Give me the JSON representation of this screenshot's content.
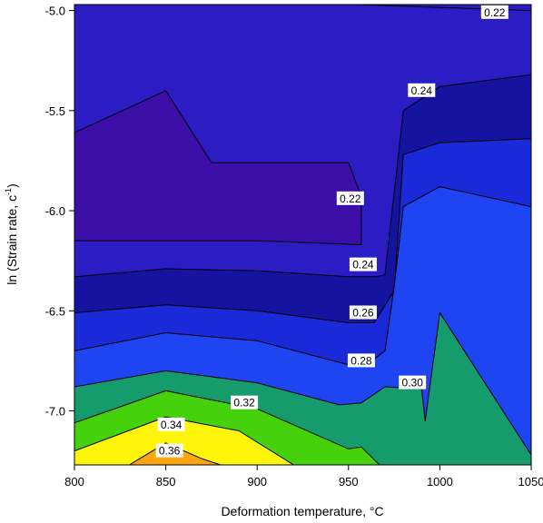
{
  "chart_data": {
    "type": "contour",
    "xlabel": "Deformation temperature, °C",
    "ylabel": "ln (Strain rate, c",
    "ylabel_sup": "-1",
    "ylabel_tail": ")",
    "xlim": [
      800,
      1050
    ],
    "ylim": [
      -7.27,
      -4.97
    ],
    "x_ticks": [
      {
        "value": 800,
        "label": "800"
      },
      {
        "value": 850,
        "label": "850"
      },
      {
        "value": 900,
        "label": "900"
      },
      {
        "value": 950,
        "label": "950"
      },
      {
        "value": 1000,
        "label": "1000"
      },
      {
        "value": 1050,
        "label": "1050"
      }
    ],
    "y_ticks": [
      {
        "value": -5.0,
        "label": "-5.0"
      },
      {
        "value": -5.5,
        "label": "-5.5"
      },
      {
        "value": -6.0,
        "label": "-6.0"
      },
      {
        "value": -6.5,
        "label": "-6.5"
      },
      {
        "value": -7.0,
        "label": "-7.0"
      }
    ],
    "background_color": "#2c1cc4",
    "contours": [
      {
        "level": 0.22,
        "fill": "#3c0ea8",
        "points": [
          [
            800,
            -5.61
          ],
          [
            850,
            -5.4
          ],
          [
            875,
            -5.76
          ],
          [
            950,
            -5.76
          ],
          [
            957,
            -5.93
          ],
          [
            957,
            -6.17
          ],
          [
            900,
            -6.15
          ],
          [
            800,
            -6.15
          ]
        ]
      },
      {
        "level": 0.24,
        "fill": "#1414a0",
        "points": [
          [
            800,
            -6.33
          ],
          [
            850,
            -6.29
          ],
          [
            900,
            -6.3
          ],
          [
            950,
            -6.33
          ],
          [
            965,
            -6.33
          ],
          [
            970,
            -6.32
          ],
          [
            980,
            -5.5
          ],
          [
            1000,
            -5.38
          ],
          [
            1050,
            -5.32
          ],
          [
            1050,
            -7.27
          ],
          [
            800,
            -7.27
          ]
        ]
      },
      {
        "level": 0.26,
        "fill": "#1a2ad8",
        "points": [
          [
            800,
            -6.51
          ],
          [
            850,
            -6.47
          ],
          [
            900,
            -6.5
          ],
          [
            950,
            -6.56
          ],
          [
            964,
            -6.56
          ],
          [
            975,
            -6.4
          ],
          [
            980,
            -5.72
          ],
          [
            1000,
            -5.66
          ],
          [
            1050,
            -5.64
          ],
          [
            1050,
            -7.27
          ],
          [
            800,
            -7.27
          ]
        ]
      },
      {
        "level": 0.28,
        "fill": "#1f44f2",
        "points": [
          [
            800,
            -6.7
          ],
          [
            850,
            -6.61
          ],
          [
            900,
            -6.65
          ],
          [
            950,
            -6.77
          ],
          [
            960,
            -6.77
          ],
          [
            970,
            -6.7
          ],
          [
            975,
            -6.38
          ],
          [
            980,
            -5.98
          ],
          [
            1000,
            -5.88
          ],
          [
            1050,
            -5.98
          ],
          [
            1050,
            -7.27
          ],
          [
            800,
            -7.27
          ]
        ]
      },
      {
        "level": 0.3,
        "fill": "#159b6c",
        "points": [
          [
            800,
            -6.88
          ],
          [
            850,
            -6.8
          ],
          [
            900,
            -6.86
          ],
          [
            945,
            -6.97
          ],
          [
            957,
            -6.96
          ],
          [
            970,
            -6.88
          ],
          [
            990,
            -6.89
          ],
          [
            992,
            -7.05
          ],
          [
            1000,
            -6.51
          ],
          [
            1050,
            -7.22
          ],
          [
            1050,
            -7.27
          ],
          [
            800,
            -7.27
          ]
        ]
      },
      {
        "level": 0.32,
        "fill": "#45d20c",
        "points": [
          [
            800,
            -7.06
          ],
          [
            850,
            -6.9
          ],
          [
            900,
            -6.99
          ],
          [
            950,
            -7.19
          ],
          [
            957,
            -7.18
          ],
          [
            967,
            -7.27
          ],
          [
            800,
            -7.27
          ]
        ]
      },
      {
        "level": 0.34,
        "fill": "#fef50a",
        "points": [
          [
            800,
            -7.2
          ],
          [
            850,
            -7.03
          ],
          [
            890,
            -7.1
          ],
          [
            920,
            -7.27
          ],
          [
            800,
            -7.27
          ]
        ]
      },
      {
        "level": 0.36,
        "fill": "#fba50f",
        "points": [
          [
            830,
            -7.27
          ],
          [
            850,
            -7.16
          ],
          [
            870,
            -7.24
          ],
          [
            880,
            -7.27
          ]
        ]
      }
    ],
    "line_segments": [
      {
        "points": [
          [
            955,
            -4.97
          ],
          [
            1050,
            -5.0
          ]
        ]
      }
    ],
    "contour_labels": [
      {
        "text": "0.22",
        "x": 1030,
        "y": -5.01
      },
      {
        "text": "0.24",
        "x": 990,
        "y": -5.4
      },
      {
        "text": "0.22",
        "x": 951,
        "y": -5.94
      },
      {
        "text": "0.24",
        "x": 958,
        "y": -6.27
      },
      {
        "text": "0.26",
        "x": 958,
        "y": -6.51
      },
      {
        "text": "0.28",
        "x": 957,
        "y": -6.75
      },
      {
        "text": "0.30",
        "x": 985,
        "y": -6.86
      },
      {
        "text": "0.32",
        "x": 893,
        "y": -6.96
      },
      {
        "text": "0.34",
        "x": 853,
        "y": -7.07
      },
      {
        "text": "0.36",
        "x": 852,
        "y": -7.2
      }
    ]
  }
}
